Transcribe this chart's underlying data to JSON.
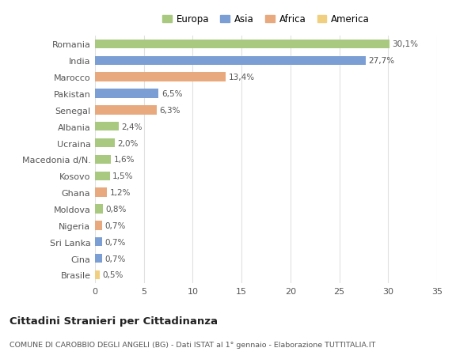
{
  "countries": [
    "Romania",
    "India",
    "Marocco",
    "Pakistan",
    "Senegal",
    "Albania",
    "Ucraina",
    "Macedonia d/N.",
    "Kosovo",
    "Ghana",
    "Moldova",
    "Nigeria",
    "Sri Lanka",
    "Cina",
    "Brasile"
  ],
  "values": [
    30.1,
    27.7,
    13.4,
    6.5,
    6.3,
    2.4,
    2.0,
    1.6,
    1.5,
    1.2,
    0.8,
    0.7,
    0.7,
    0.7,
    0.5
  ],
  "labels": [
    "30,1%",
    "27,7%",
    "13,4%",
    "6,5%",
    "6,3%",
    "2,4%",
    "2,0%",
    "1,6%",
    "1,5%",
    "1,2%",
    "0,8%",
    "0,7%",
    "0,7%",
    "0,7%",
    "0,5%"
  ],
  "continents": [
    "Europa",
    "Asia",
    "Africa",
    "Asia",
    "Africa",
    "Europa",
    "Europa",
    "Europa",
    "Europa",
    "Africa",
    "Europa",
    "Africa",
    "Asia",
    "Asia",
    "America"
  ],
  "colors": {
    "Europa": "#a8c97f",
    "Asia": "#7b9fd4",
    "Africa": "#e8a97e",
    "America": "#f0d080"
  },
  "legend_order": [
    "Europa",
    "Asia",
    "Africa",
    "America"
  ],
  "title": "Cittadini Stranieri per Cittadinanza",
  "subtitle": "COMUNE DI CAROBBIO DEGLI ANGELI (BG) - Dati ISTAT al 1° gennaio - Elaborazione TUTTITALIA.IT",
  "xlim": [
    0,
    35
  ],
  "xticks": [
    0,
    5,
    10,
    15,
    20,
    25,
    30,
    35
  ],
  "bg_color": "#ffffff",
  "grid_color": "#e0e0e0",
  "bar_height": 0.55,
  "label_fontsize": 7.5,
  "ytick_fontsize": 8.0,
  "xtick_fontsize": 8.0
}
